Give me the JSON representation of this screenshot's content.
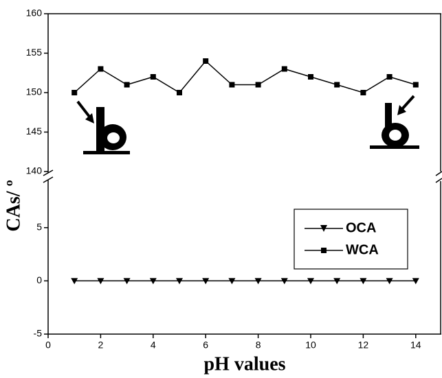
{
  "chart_data": {
    "type": "line",
    "x": [
      1,
      2,
      3,
      4,
      5,
      6,
      7,
      8,
      9,
      10,
      11,
      12,
      13,
      14
    ],
    "xlim": [
      0,
      15
    ],
    "xticks": [
      0,
      2,
      4,
      6,
      8,
      10,
      12,
      14
    ],
    "ylim": [
      -5,
      9.5
    ],
    "yticks": [
      -5,
      0,
      5
    ],
    "y2lim": [
      140,
      160
    ],
    "y2ticks": [
      140,
      145,
      150,
      155,
      160
    ],
    "xlabel": "pH values",
    "ylabel": "CAs/ º",
    "legend_loc": "right",
    "series": [
      {
        "name": "OCA",
        "color": "#000000",
        "marker": "triangle-down",
        "values": [
          0,
          0,
          0,
          0,
          0,
          0,
          0,
          0,
          0,
          0,
          0,
          0,
          0,
          0
        ]
      },
      {
        "name": "WCA",
        "color": "#000000",
        "marker": "square",
        "axis": "y2",
        "values": [
          150,
          153,
          151,
          152,
          150,
          154,
          151,
          151,
          153,
          152,
          151,
          150,
          152,
          151
        ]
      }
    ]
  }
}
